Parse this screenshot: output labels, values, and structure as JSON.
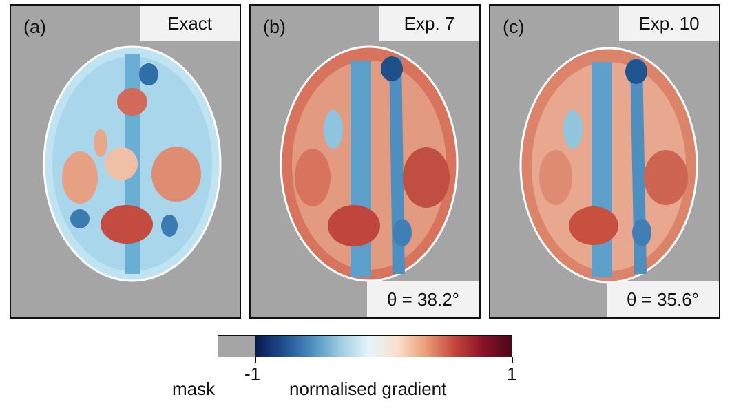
{
  "panels": [
    {
      "label": "(a)",
      "title": "Exact",
      "angle": ""
    },
    {
      "label": "(b)",
      "title": "Exp. 7",
      "angle": "θ = 38.2°"
    },
    {
      "label": "(c)",
      "title": "Exp. 10",
      "angle": "θ = 35.6°"
    }
  ],
  "colorbar": {
    "mask_label": "mask",
    "min_label": "-1",
    "max_label": "1",
    "axis_label": "normalised gradient",
    "colors": [
      "#08194d",
      "#1f4f8f",
      "#4b90c0",
      "#9fcde3",
      "#e5f5fa",
      "#f9e0cc",
      "#e89c77",
      "#c5453a",
      "#8a1228",
      "#4b0718"
    ],
    "mask_color": "#a5a5a5"
  }
}
